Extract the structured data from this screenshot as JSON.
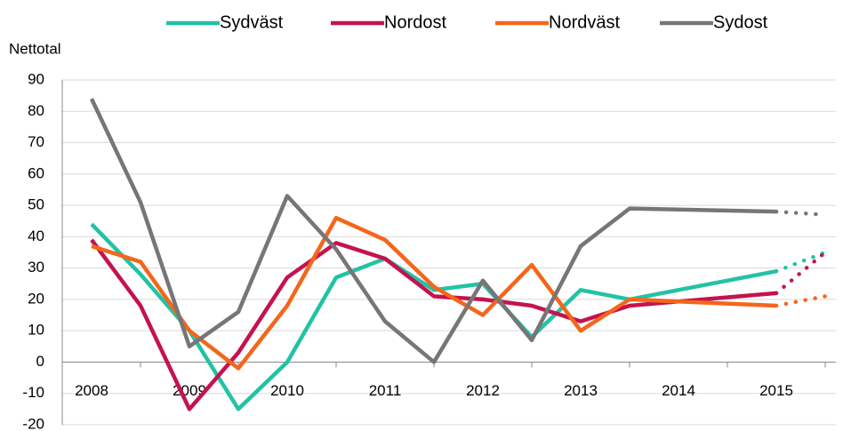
{
  "chart_data": {
    "type": "line",
    "y_label": "Nettotal",
    "x": [
      2008,
      2008.5,
      2009,
      2009.5,
      2010,
      2010.5,
      2011,
      2011.5,
      2012,
      2012.5,
      2013,
      2013.5,
      2015,
      2015.5
    ],
    "series": [
      {
        "name": "Sydväst",
        "color": "#22c2a5",
        "values": [
          44,
          28,
          10,
          -15,
          0,
          27,
          33,
          23,
          25,
          8,
          23,
          20,
          29,
          35
        ]
      },
      {
        "name": "Nordost",
        "color": "#c4134f",
        "values": [
          39,
          18,
          -15,
          3,
          27,
          38,
          33,
          21,
          20,
          18,
          13,
          18,
          22,
          35
        ]
      },
      {
        "name": "Nordväst",
        "color": "#f4661b",
        "values": [
          37,
          32,
          10,
          -2,
          18,
          46,
          39,
          24,
          15,
          31,
          10,
          20,
          18,
          21
        ]
      },
      {
        "name": "Sydost",
        "color": "#767676",
        "values": [
          84,
          51,
          5,
          16,
          53,
          36,
          13,
          0,
          26,
          7,
          37,
          49,
          48,
          47
        ]
      }
    ],
    "dotted_from": 12,
    "xlim": [
      2007.7,
      2015.7
    ],
    "xticks": [
      2008,
      2009,
      2010,
      2011,
      2012,
      2013,
      2014,
      2015
    ],
    "ylim": [
      -20,
      90
    ],
    "yticks": [
      -20,
      -10,
      0,
      10,
      20,
      30,
      40,
      50,
      60,
      70,
      80,
      90
    ],
    "grid": true,
    "legend": "top"
  }
}
